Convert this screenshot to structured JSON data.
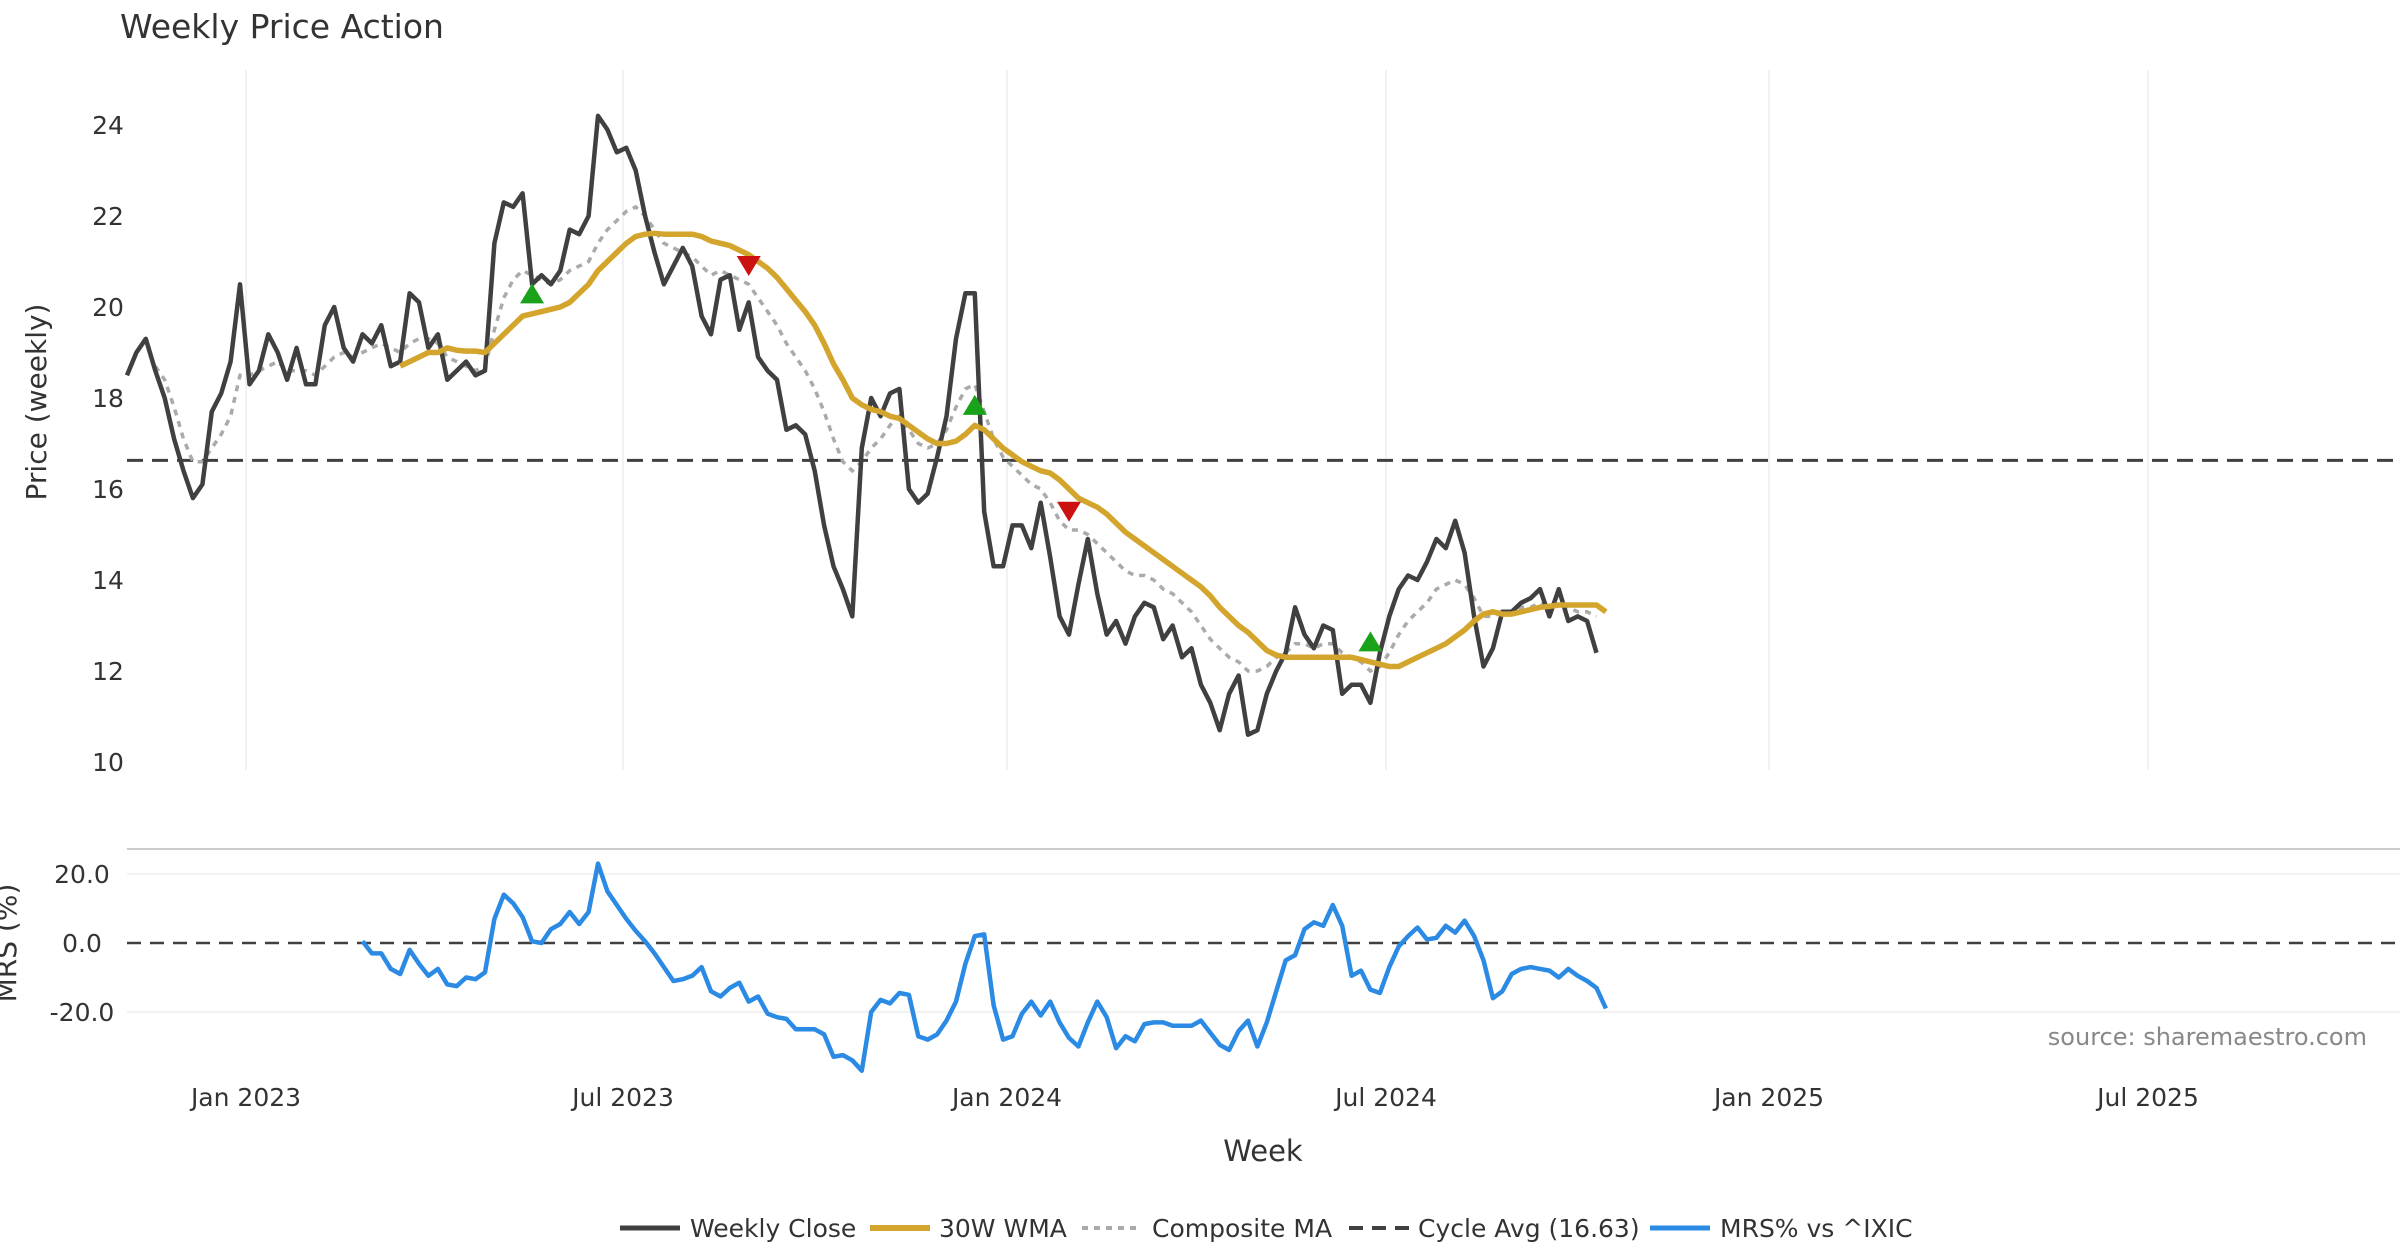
{
  "chart_data": {
    "type": "line",
    "title": "Weekly Price Action",
    "source": "source: sharemaestro.com",
    "xlabel": "Week",
    "x_ticks": [
      "Jan 2023",
      "Jul 2023",
      "Jan 2024",
      "Jul 2024",
      "Jan 2025",
      "Jul 2025"
    ],
    "price_panel": {
      "ylabel": "Price (weekly)",
      "ylim": [
        10,
        25
      ],
      "yticks": [
        "10",
        "12",
        "14",
        "16",
        "18",
        "20",
        "22",
        "24"
      ],
      "cycle_avg": 16.63
    },
    "mrs_panel": {
      "ylabel": "MRS (%)",
      "ylim": [
        -37,
        27
      ],
      "yticks": [
        "-20.0",
        "0.0",
        "20.0"
      ]
    },
    "series": [
      {
        "name": "Weekly Close",
        "color": "#404040",
        "values": [
          18.5,
          19.0,
          19.3,
          18.6,
          18.0,
          17.1,
          16.4,
          15.8,
          16.1,
          17.7,
          18.1,
          18.8,
          20.5,
          18.3,
          18.6,
          19.4,
          19.0,
          18.4,
          19.1,
          18.3,
          18.3,
          19.6,
          20.0,
          19.1,
          18.8,
          19.4,
          19.2,
          19.6,
          18.7,
          18.8,
          20.3,
          20.1,
          19.1,
          19.4,
          18.4,
          18.6,
          18.8,
          18.5,
          18.6,
          21.4,
          22.3,
          22.2,
          22.5,
          20.5,
          20.7,
          20.5,
          20.8,
          21.7,
          21.6,
          22.0,
          24.2,
          23.9,
          23.4,
          23.5,
          23.0,
          22.0,
          21.2,
          20.5,
          20.9,
          21.3,
          20.9,
          19.8,
          19.4,
          20.6,
          20.7,
          19.5,
          20.1,
          18.9,
          18.6,
          18.4,
          17.3,
          17.4,
          17.2,
          16.4,
          15.2,
          14.3,
          13.8,
          13.2,
          16.9,
          18.0,
          17.6,
          18.1,
          18.2,
          16.0,
          15.7,
          15.9,
          16.7,
          17.6,
          19.3,
          20.3,
          20.3,
          15.5,
          14.3,
          14.3,
          15.2,
          15.2,
          14.7,
          15.7,
          14.5,
          13.2,
          12.8,
          13.9,
          14.9,
          13.7,
          12.8,
          13.1,
          12.6,
          13.2,
          13.5,
          13.4,
          12.7,
          13.0,
          12.3,
          12.5,
          11.7,
          11.3,
          10.7,
          11.5,
          11.9,
          10.6,
          10.7,
          11.5,
          12.0,
          12.4,
          13.4,
          12.8,
          12.5,
          13.0,
          12.9,
          11.5,
          11.7,
          11.7,
          11.3,
          12.4,
          13.2,
          13.8,
          14.1,
          14.0,
          14.4,
          14.9,
          14.7,
          15.3,
          14.6,
          13.2,
          12.1,
          12.5,
          13.3,
          13.3,
          13.5,
          13.6,
          13.8,
          13.2,
          13.8,
          13.1,
          13.2,
          13.1,
          12.4
        ]
      },
      {
        "name": "30W WMA",
        "color": "#d4a52c",
        "values": [
          null,
          null,
          null,
          null,
          null,
          null,
          null,
          null,
          null,
          null,
          null,
          null,
          null,
          null,
          null,
          null,
          null,
          null,
          null,
          null,
          null,
          null,
          null,
          null,
          null,
          null,
          null,
          null,
          null,
          18.7,
          18.8,
          18.9,
          19.0,
          19.0,
          19.1,
          19.05,
          19.03,
          19.03,
          19.0,
          19.2,
          19.4,
          19.6,
          19.8,
          19.85,
          19.9,
          19.95,
          20.0,
          20.1,
          20.3,
          20.5,
          20.8,
          21.0,
          21.2,
          21.4,
          21.55,
          21.6,
          21.62,
          21.6,
          21.6,
          21.6,
          21.6,
          21.55,
          21.45,
          21.4,
          21.35,
          21.25,
          21.15,
          21.0,
          20.85,
          20.65,
          20.4,
          20.15,
          19.9,
          19.6,
          19.2,
          18.75,
          18.4,
          18.0,
          17.85,
          17.75,
          17.7,
          17.6,
          17.55,
          17.4,
          17.25,
          17.1,
          17.0,
          17.0,
          17.05,
          17.2,
          17.4,
          17.3,
          17.1,
          16.9,
          16.75,
          16.6,
          16.5,
          16.4,
          16.35,
          16.2,
          16.0,
          15.8,
          15.7,
          15.6,
          15.45,
          15.25,
          15.05,
          14.9,
          14.75,
          14.6,
          14.45,
          14.3,
          14.15,
          14.0,
          13.85,
          13.65,
          13.4,
          13.2,
          13.0,
          12.85,
          12.65,
          12.45,
          12.35,
          12.3,
          12.3,
          12.3,
          12.3,
          12.3,
          12.3,
          12.3,
          12.3,
          12.25,
          12.2,
          12.15,
          12.1,
          12.1,
          12.2,
          12.3,
          12.4,
          12.5,
          12.6,
          12.75,
          12.9,
          13.1,
          13.25,
          13.3,
          13.25,
          13.25,
          13.3,
          13.35,
          13.4,
          13.42,
          13.45,
          13.45,
          13.45,
          13.45,
          13.45,
          13.3
        ]
      },
      {
        "name": "Composite MA",
        "color": "#aaaaaa",
        "values": [
          null,
          null,
          null,
          18.7,
          18.4,
          17.8,
          17.1,
          16.6,
          16.6,
          16.9,
          17.2,
          17.6,
          18.5,
          18.5,
          18.6,
          18.7,
          18.8,
          18.6,
          18.6,
          18.6,
          18.5,
          18.7,
          18.9,
          19.0,
          18.9,
          19.0,
          19.1,
          19.2,
          19.1,
          19.0,
          19.2,
          19.3,
          19.3,
          19.2,
          18.9,
          18.8,
          18.7,
          18.6,
          18.7,
          19.5,
          20.2,
          20.6,
          20.8,
          20.7,
          20.6,
          20.5,
          20.6,
          20.8,
          20.9,
          21.0,
          21.4,
          21.7,
          21.9,
          22.1,
          22.2,
          22.0,
          21.7,
          21.4,
          21.3,
          21.2,
          21.1,
          20.9,
          20.7,
          20.8,
          20.7,
          20.6,
          20.5,
          20.2,
          19.9,
          19.6,
          19.2,
          18.9,
          18.6,
          18.2,
          17.7,
          17.1,
          16.6,
          16.4,
          16.6,
          16.9,
          17.1,
          17.4,
          17.6,
          17.3,
          17.0,
          16.9,
          17.0,
          17.3,
          17.8,
          18.2,
          18.3,
          17.7,
          17.1,
          16.7,
          16.5,
          16.3,
          16.1,
          16.0,
          15.7,
          15.3,
          15.1,
          15.1,
          15.0,
          14.8,
          14.6,
          14.4,
          14.2,
          14.1,
          14.1,
          14.0,
          13.8,
          13.7,
          13.5,
          13.3,
          13.0,
          12.7,
          12.5,
          12.3,
          12.2,
          12.0,
          12.0,
          12.1,
          12.3,
          12.4,
          12.6,
          12.6,
          12.5,
          12.6,
          12.6,
          12.4,
          12.3,
          12.2,
          12.0,
          12.1,
          12.4,
          12.8,
          13.1,
          13.3,
          13.5,
          13.8,
          13.9,
          14.0,
          13.9,
          13.6,
          13.2,
          13.2,
          13.3,
          13.3,
          13.4,
          13.4,
          13.5,
          13.4,
          13.5,
          13.4,
          13.3,
          13.3,
          13.2
        ]
      },
      {
        "name": "Cycle Avg (16.63)",
        "color": "#404040"
      },
      {
        "name": "MRS% vs ^IXIC",
        "color": "#2b8ae3",
        "panel": "mrs",
        "values": [
          null,
          null,
          null,
          null,
          null,
          null,
          null,
          null,
          null,
          null,
          null,
          null,
          null,
          null,
          null,
          null,
          null,
          null,
          null,
          null,
          null,
          null,
          null,
          null,
          null,
          null,
          null,
          null,
          null,
          null,
          null,
          null,
          null,
          null,
          null,
          null,
          null,
          null,
          null,
          null,
          null,
          null,
          null,
          null,
          null,
          null,
          null,
          null,
          null,
          null,
          null,
          null,
          null,
          null,
          null,
          null,
          null,
          null,
          null,
          null,
          null,
          null,
          null,
          null,
          null,
          null,
          null,
          null,
          null,
          null,
          null,
          null,
          null,
          null,
          null,
          null,
          null,
          null,
          null,
          null,
          null,
          null,
          null,
          null,
          null,
          null,
          null,
          null,
          null,
          null,
          null,
          null,
          null,
          null,
          null,
          null,
          null,
          null,
          null,
          null,
          null,
          null,
          null,
          null,
          null,
          null,
          null,
          null,
          null,
          null,
          null,
          null,
          null,
          null,
          null,
          null,
          null,
          null,
          null,
          null,
          null,
          null,
          null,
          null,
          null,
          null,
          null,
          null,
          null,
          null,
          null,
          null,
          null,
          null,
          null,
          null,
          null,
          null,
          null,
          null,
          null,
          null,
          null,
          null,
          null,
          null,
          null,
          null,
          null,
          null,
          null,
          null,
          null,
          null,
          null,
          null,
          null,
          null,
          null,
          null
        ]
      }
    ],
    "mrs_values": [
      0.5,
      -3.0,
      -3.0,
      -7.5,
      -9.0,
      -2.0,
      -6.0,
      -9.5,
      -7.5,
      -12.0,
      -12.5,
      -10.0,
      -10.5,
      -8.5,
      7.0,
      14.0,
      11.5,
      7.5,
      0.5,
      0.0,
      4.0,
      5.5,
      9.0,
      5.5,
      9.0,
      23.0,
      15.0,
      11.0,
      7.0,
      3.5,
      0.5,
      -3.0,
      -7.0,
      -11.0,
      -10.5,
      -9.5,
      -7.0,
      -14.0,
      -15.5,
      -13.0,
      -11.5,
      -17.0,
      -15.5,
      -20.5,
      -21.5,
      -22.0,
      -25.0,
      -25.0,
      -25.0,
      -26.5,
      -33.0,
      -32.5,
      -34.0,
      -37.0,
      -20.0,
      -16.5,
      -17.5,
      -14.5,
      -15.0,
      -27.0,
      -28.0,
      -26.5,
      -22.5,
      -17.0,
      -6.0,
      2.0,
      2.5,
      -18.0,
      -28.0,
      -27.0,
      -20.5,
      -17.0,
      -21.0,
      -17.0,
      -23.0,
      -27.5,
      -30.0,
      -23.0,
      -17.0,
      -21.5,
      -30.5,
      -27.0,
      -28.5,
      -23.5,
      -23.0,
      -23.0,
      -24.0,
      -24.0,
      -24.0,
      -22.5,
      -26.0,
      -29.5,
      -31.0,
      -25.5,
      -22.5,
      -30.0,
      -23.0,
      -14.0,
      -5.0,
      -3.5,
      4.0,
      6.0,
      5.0,
      11.0,
      5.0,
      -9.5,
      -8.0,
      -13.5,
      -14.5,
      -7.0,
      -1.0,
      2.0,
      4.5,
      1.0,
      1.5,
      5.0,
      3.0,
      6.5,
      2.0,
      -5.0,
      -16.0,
      -14.0,
      -9.0,
      -7.5,
      -7.0,
      -7.5,
      -8.0,
      -10.0,
      -7.5,
      -9.5,
      -11.0,
      -13.0,
      -19.0
    ],
    "signals": [
      {
        "type": "buy",
        "week": 43,
        "price": 20.3
      },
      {
        "type": "sell",
        "week": 66,
        "price": 20.9
      },
      {
        "type": "buy",
        "week": 90,
        "price": 17.85
      },
      {
        "type": "sell",
        "week": 100,
        "price": 15.5
      },
      {
        "type": "buy",
        "week": 132,
        "price": 12.65
      }
    ],
    "legend": [
      "Weekly Close",
      "30W WMA",
      "Composite MA",
      "Cycle Avg (16.63)",
      "MRS% vs ^IXIC"
    ],
    "legend_position": "bottom-center"
  }
}
